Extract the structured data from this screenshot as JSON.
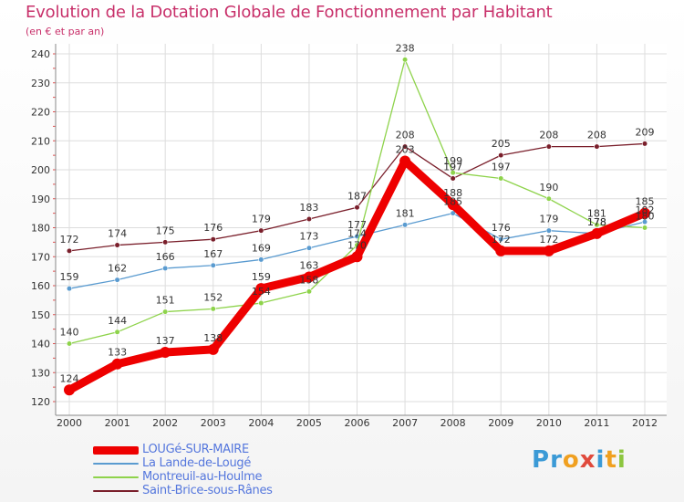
{
  "title": "Evolution de la Dotation Globale de Fonctionnement par Habitant",
  "subtitle": "(en € et par an)",
  "logo": {
    "text": "Proxiti",
    "letters": [
      "P",
      "r",
      "o",
      "x",
      "i",
      "t",
      "i"
    ],
    "colors": [
      "#3b9ad6",
      "#3b9ad6",
      "#f0a020",
      "#e04a3c",
      "#3b9ad6",
      "#f0a020",
      "#8cc63f"
    ]
  },
  "colors": {
    "title": "#c8306a",
    "axis": "#555555",
    "grid": "#dddddd"
  },
  "chart_data": {
    "type": "line",
    "title": "Evolution de la Dotation Globale de Fonctionnement par Habitant",
    "subtitle": "(en € et par an)",
    "categories": [
      "2000",
      "2001",
      "2002",
      "2003",
      "2004",
      "2005",
      "2006",
      "2007",
      "2008",
      "2009",
      "2010",
      "2011",
      "2012"
    ],
    "yticks": [
      120,
      130,
      140,
      150,
      160,
      170,
      180,
      190,
      200,
      210,
      220,
      230,
      240
    ],
    "ylim": [
      120,
      242
    ],
    "grid": true,
    "series": [
      {
        "name": "Saint-Brice-sous-Rânes",
        "color": "#7a1f2b",
        "width": 1.3,
        "marker": 2.8,
        "values": [
          172,
          174,
          175,
          176,
          179,
          183,
          187,
          208,
          197,
          205,
          208,
          208,
          209
        ],
        "labels": [
          "172",
          "174",
          "175",
          "176",
          "179",
          "183",
          "187",
          "208",
          "197",
          "205",
          "208",
          "208",
          "209"
        ]
      },
      {
        "name": "La Lande-de-Lougé",
        "color": "#5a9bd0",
        "width": 1.3,
        "marker": 2.8,
        "values": [
          159,
          162,
          166,
          167,
          169,
          173,
          177,
          181,
          185,
          176,
          179,
          178,
          182
        ],
        "labels": [
          "159",
          "162",
          "166",
          "167",
          "169",
          "173",
          "177",
          "181",
          "185",
          "176",
          "179",
          "178",
          "182"
        ]
      },
      {
        "name": "Montreuil-au-Houlme",
        "color": "#8ed34b",
        "width": 1.3,
        "marker": 2.8,
        "values": [
          140,
          144,
          151,
          152,
          154,
          158,
          174,
          238,
          199,
          197,
          190,
          181,
          180
        ],
        "labels": [
          "140",
          "144",
          "151",
          "152",
          "154",
          "158",
          "174",
          "238",
          "199",
          "197",
          "190",
          "181",
          "180"
        ]
      },
      {
        "name": "LOUGé-SUR-MAIRE",
        "color": "#ee0000",
        "width": 9,
        "marker": 6,
        "values": [
          124,
          133,
          137,
          138,
          159,
          163,
          170,
          203,
          188,
          172,
          172,
          178,
          185
        ],
        "labels": [
          "124",
          "133",
          "137",
          "138",
          "159",
          "163",
          "170",
          "203",
          "188",
          "172",
          "172",
          "178",
          "185"
        ]
      }
    ],
    "legend": [
      {
        "name": "LOUGé-SUR-MAIRE",
        "color": "#ee0000",
        "thick": true
      },
      {
        "name": "La Lande-de-Lougé",
        "color": "#5a9bd0",
        "thick": false
      },
      {
        "name": "Montreuil-au-Houlme",
        "color": "#8ed34b",
        "thick": false
      },
      {
        "name": "Saint-Brice-sous-Rânes",
        "color": "#7a1f2b",
        "thick": false
      }
    ]
  }
}
